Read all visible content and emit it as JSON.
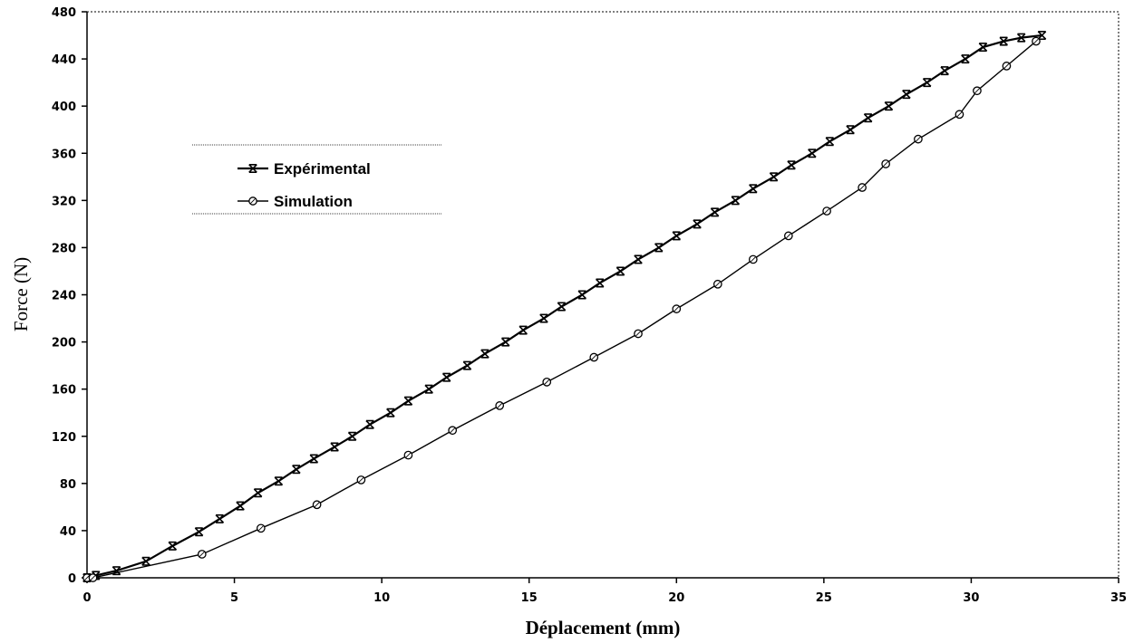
{
  "chart_data": {
    "type": "line",
    "xlabel": "Déplacement (mm)",
    "ylabel": "Force (N)",
    "xlim": [
      0,
      35
    ],
    "ylim": [
      0,
      480
    ],
    "xticks": [
      "0",
      "5",
      "10",
      "15",
      "20",
      "25",
      "30",
      "35"
    ],
    "yticks": [
      "0",
      "40",
      "80",
      "120",
      "160",
      "200",
      "240",
      "280",
      "320",
      "360",
      "400",
      "440",
      "480"
    ],
    "grid": false,
    "legend_position": "upper-left",
    "series": [
      {
        "name": "Expérimental",
        "marker": "x-bar",
        "color": "#000000",
        "x": [
          0,
          0.3,
          1.0,
          2.0,
          2.9,
          3.8,
          4.5,
          5.2,
          5.8,
          6.5,
          7.1,
          7.7,
          8.4,
          9.0,
          9.6,
          10.3,
          10.9,
          11.6,
          12.2,
          12.9,
          13.5,
          14.2,
          14.8,
          15.5,
          16.1,
          16.8,
          17.4,
          18.1,
          18.7,
          19.4,
          20.0,
          20.7,
          21.3,
          22.0,
          22.6,
          23.3,
          23.9,
          24.6,
          25.2,
          25.9,
          26.5,
          27.2,
          27.8,
          28.5,
          29.1,
          29.8,
          30.4,
          31.1,
          31.7,
          32.4
        ],
        "y": [
          0,
          2,
          6,
          14,
          27,
          39,
          50,
          61,
          72,
          82,
          92,
          101,
          111,
          120,
          130,
          140,
          150,
          160,
          170,
          180,
          190,
          200,
          210,
          220,
          230,
          240,
          250,
          260,
          270,
          280,
          290,
          300,
          310,
          320,
          330,
          340,
          350,
          360,
          370,
          380,
          390,
          400,
          410,
          420,
          430,
          440,
          450,
          455,
          458,
          460
        ]
      },
      {
        "name": "Simulation",
        "marker": "circle",
        "color": "#000000",
        "x": [
          0,
          0.2,
          3.9,
          5.9,
          7.8,
          9.3,
          10.9,
          12.4,
          14.0,
          15.6,
          17.2,
          18.7,
          20.0,
          21.4,
          22.6,
          23.8,
          25.1,
          26.3,
          27.1,
          28.2,
          29.6,
          30.2,
          31.2,
          32.2
        ],
        "y": [
          0,
          0,
          20,
          42,
          62,
          83,
          104,
          125,
          146,
          166,
          187,
          207,
          228,
          249,
          270,
          290,
          311,
          331,
          351,
          372,
          393,
          413,
          434,
          455
        ]
      }
    ]
  }
}
